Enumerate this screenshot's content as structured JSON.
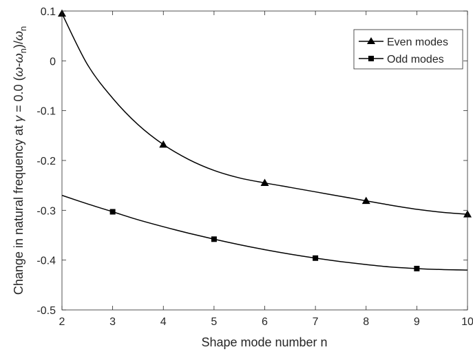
{
  "chart_data": {
    "type": "line",
    "xlabel": "Shape mode number n",
    "ylabel_main": "Change in natural frequency at ",
    "ylabel_gamma": "γ",
    "ylabel_eq": " = 0.0 (",
    "ylabel_omega1": "ω",
    "ylabel_minus": "-",
    "ylabel_omega2": "ω",
    "ylabel_sub1": "n",
    "ylabel_close": ")/",
    "ylabel_omega3": "ω",
    "ylabel_sub2": "n",
    "xlim": [
      2,
      10
    ],
    "ylim": [
      -0.5,
      0.1
    ],
    "xticks": [
      2,
      3,
      4,
      5,
      6,
      7,
      8,
      9,
      10
    ],
    "xtick_labels": [
      "2",
      "3",
      "4",
      "5",
      "6",
      "7",
      "8",
      "9",
      "10"
    ],
    "yticks": [
      -0.5,
      -0.4,
      -0.3,
      -0.2,
      -0.1,
      0,
      0.1
    ],
    "ytick_labels": [
      "-0.5",
      "-0.4",
      "-0.3",
      "-0.2",
      "-0.1",
      "0",
      "0.1"
    ],
    "grid": false,
    "legend_position": "top-right",
    "series": [
      {
        "name": "Even modes",
        "marker": "triangle",
        "color": "#000000",
        "curve_x": [
          2,
          2.5,
          3,
          3.5,
          4,
          4.5,
          5,
          5.5,
          6,
          6.5,
          7,
          7.5,
          8,
          8.5,
          9,
          9.5,
          10
        ],
        "curve_y": [
          0.095,
          -0.007,
          -0.075,
          -0.128,
          -0.168,
          -0.198,
          -0.22,
          -0.235,
          -0.245,
          -0.254,
          -0.263,
          -0.272,
          -0.281,
          -0.29,
          -0.298,
          -0.304,
          -0.308
        ],
        "marker_x": [
          2,
          4,
          6,
          8,
          10
        ],
        "marker_y": [
          0.095,
          -0.168,
          -0.245,
          -0.281,
          -0.308
        ]
      },
      {
        "name": "Odd modes",
        "marker": "square",
        "color": "#000000",
        "curve_x": [
          2,
          2.5,
          3,
          3.5,
          4,
          4.5,
          5,
          5.5,
          6,
          6.5,
          7,
          7.5,
          8,
          8.5,
          9,
          9.5,
          10
        ],
        "curve_y": [
          -0.27,
          -0.287,
          -0.303,
          -0.319,
          -0.333,
          -0.346,
          -0.358,
          -0.369,
          -0.379,
          -0.388,
          -0.396,
          -0.403,
          -0.409,
          -0.414,
          -0.417,
          -0.419,
          -0.42
        ],
        "marker_x": [
          3,
          5,
          7,
          9
        ],
        "marker_y": [
          -0.303,
          -0.358,
          -0.396,
          -0.417
        ]
      }
    ]
  }
}
